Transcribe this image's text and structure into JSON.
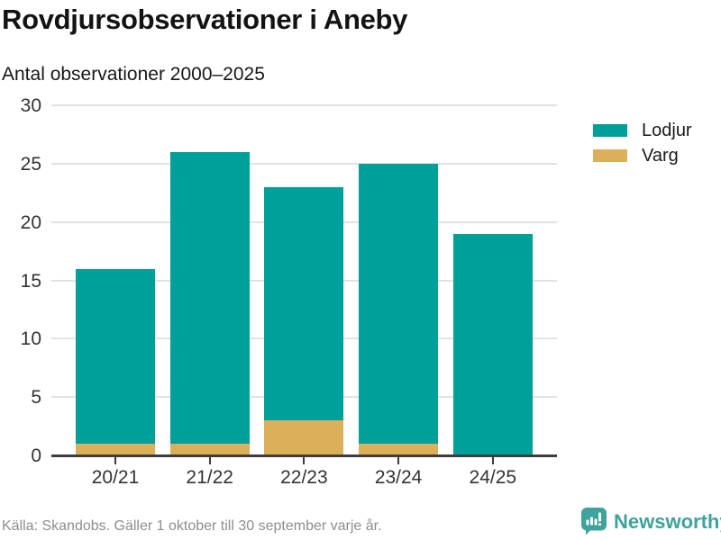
{
  "chart_data": {
    "type": "bar",
    "stacked": true,
    "title": "Rovdjursobservationer i Aneby",
    "subtitle": "Antal observationer 2000–2025",
    "categories": [
      "20/21",
      "21/22",
      "22/23",
      "23/24",
      "24/25"
    ],
    "series": [
      {
        "name": "Lodjur",
        "color": "#00a09a",
        "values": [
          15,
          25,
          20,
          24,
          19
        ]
      },
      {
        "name": "Varg",
        "color": "#dcaf5b",
        "values": [
          1,
          1,
          3,
          1,
          0
        ]
      }
    ],
    "stacked_totals": [
      16,
      26,
      23,
      25,
      19
    ],
    "stack_order_bottom_to_top": [
      "Varg",
      "Lodjur"
    ],
    "xlabel": "",
    "ylabel": "",
    "ylim": [
      0,
      30
    ],
    "yticks": [
      0,
      5,
      10,
      15,
      20,
      25,
      30
    ],
    "grid": true,
    "legend_position": "right",
    "colors": {
      "gridline": "#e2e2e2",
      "axis": "#3d3d3d",
      "tick_text": "#333333"
    }
  },
  "footer": {
    "source": "Källa: Skandobs. Gäller 1 oktober till 30 september varje år.",
    "brand": "Newsworthy",
    "brand_color": "#3fa29b"
  }
}
